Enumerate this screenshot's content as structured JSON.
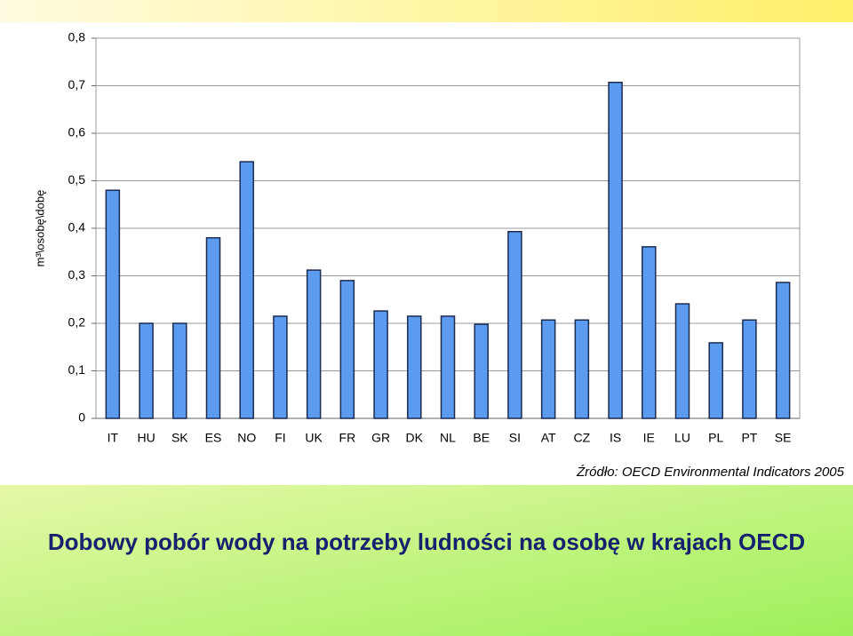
{
  "chart_data": {
    "type": "bar",
    "y_label": "m³\\osobę\\dobę",
    "categories": [
      "IT",
      "HU",
      "SK",
      "ES",
      "NO",
      "FI",
      "UK",
      "FR",
      "GR",
      "DK",
      "NL",
      "BE",
      "SI",
      "AT",
      "CZ",
      "IS",
      "IE",
      "LU",
      "PL",
      "PT",
      "SE"
    ],
    "values": [
      0.48,
      0.2,
      0.2,
      0.38,
      0.54,
      0.215,
      0.312,
      0.29,
      0.226,
      0.215,
      0.215,
      0.198,
      0.393,
      0.207,
      0.207,
      0.707,
      0.361,
      0.241,
      0.159,
      0.207,
      0.286
    ],
    "color": "#5b9cf0",
    "ylim": [
      0,
      0.8
    ],
    "yticks": [
      0,
      {
        "value": 0.1,
        "label": "0,1"
      },
      {
        "value": 0.2,
        "label": "0,2"
      },
      {
        "value": 0.3,
        "label": "0,3"
      },
      {
        "value": 0.4,
        "label": "0,4"
      },
      {
        "value": 0.5,
        "label": "0,5"
      },
      {
        "value": 0.6,
        "label": "0,6"
      },
      {
        "value": 0.7,
        "label": "0,7"
      },
      {
        "value": 0.8,
        "label": "0,8"
      }
    ],
    "grid": true,
    "source": "Źródło: OECD Environmental Indicators 2005",
    "title": "Dobowy pobór wody na potrzeby ludności na osobę w krajach OECD"
  }
}
